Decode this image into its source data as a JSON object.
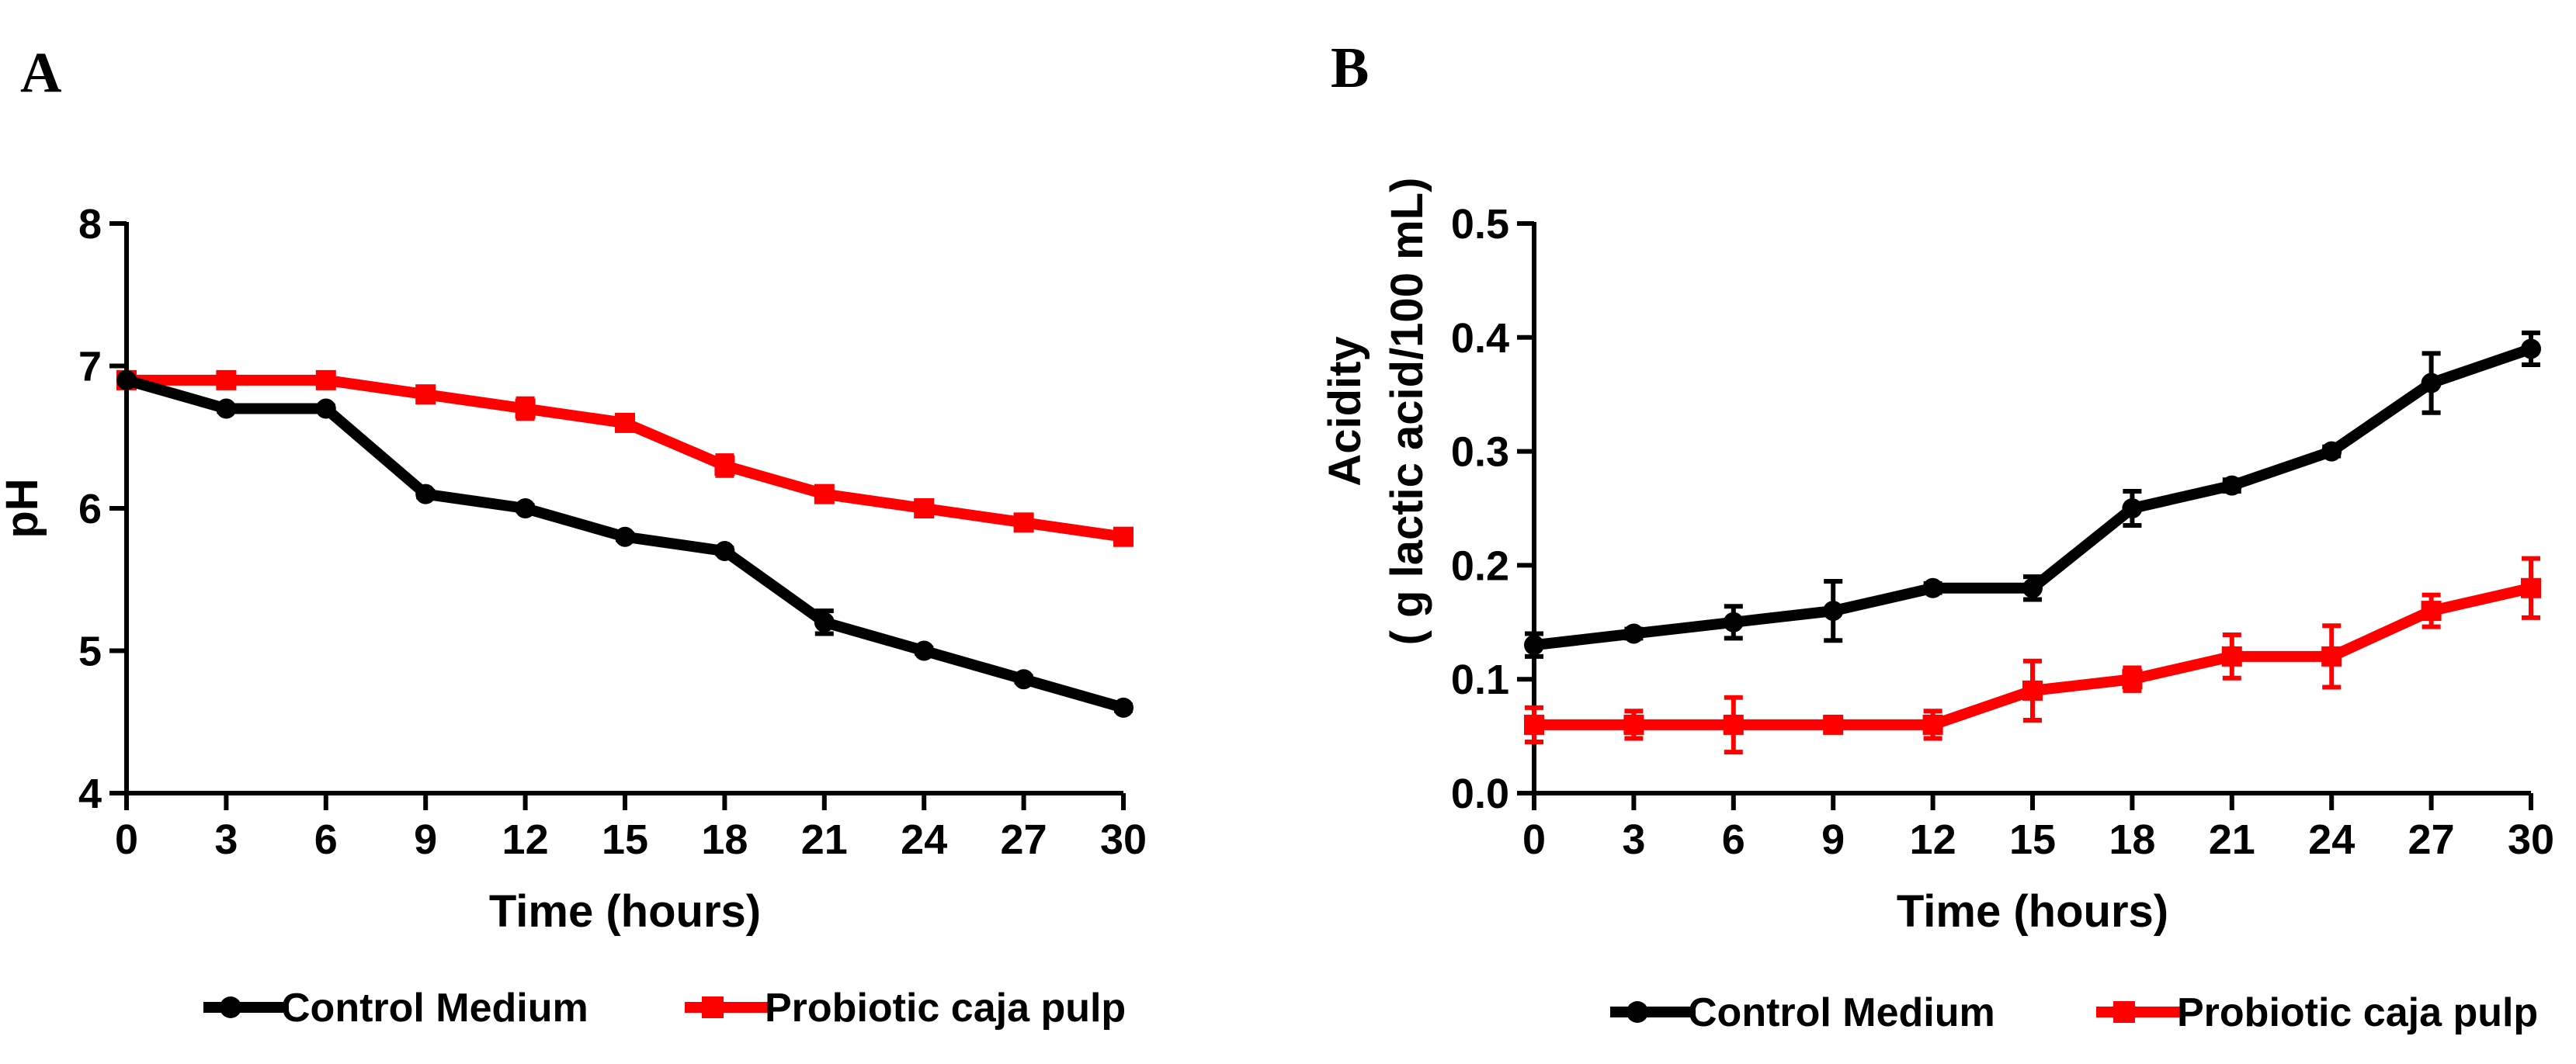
{
  "chart_data": [
    {
      "panel": "A",
      "type": "line",
      "x": [
        0,
        3,
        6,
        9,
        12,
        15,
        18,
        21,
        24,
        27,
        30
      ],
      "x_ticks": [
        "0",
        "3",
        "6",
        "9",
        "12",
        "15",
        "18",
        "21",
        "24",
        "27",
        "30"
      ],
      "y_ticks": [
        "4",
        "5",
        "6",
        "7",
        "8"
      ],
      "xlim": [
        0,
        30
      ],
      "ylim": [
        4,
        8
      ],
      "xlabel": "Time (hours)",
      "ylabel": "pH",
      "series": [
        {
          "name": "Control Medium",
          "color": "#000000",
          "marker": "circle",
          "values": [
            6.9,
            6.7,
            6.7,
            6.1,
            6.0,
            5.8,
            5.7,
            5.2,
            5.0,
            4.8,
            4.6
          ],
          "errors": [
            0.02,
            0.02,
            0.02,
            0.02,
            0.02,
            0.02,
            0.02,
            0.08,
            0.02,
            0.02,
            0.02
          ]
        },
        {
          "name": "Probiotic caja pulp",
          "color": "#ff0000",
          "marker": "square",
          "values": [
            6.9,
            6.9,
            6.9,
            6.8,
            6.7,
            6.6,
            6.3,
            6.1,
            6.0,
            5.9,
            5.8
          ],
          "errors": [
            0.02,
            0.02,
            0.02,
            0.02,
            0.07,
            0.02,
            0.07,
            0.02,
            0.02,
            0.02,
            0.02
          ]
        }
      ],
      "legend": [
        "Control Medium",
        "Probiotic caja pulp"
      ]
    },
    {
      "panel": "B",
      "type": "line",
      "x": [
        0,
        3,
        6,
        9,
        12,
        15,
        18,
        21,
        24,
        27,
        30
      ],
      "x_ticks": [
        "0",
        "3",
        "6",
        "9",
        "12",
        "15",
        "18",
        "21",
        "24",
        "27",
        "30"
      ],
      "y_ticks": [
        "0.0",
        "0.1",
        "0.2",
        "0.3",
        "0.4",
        "0.5"
      ],
      "xlim": [
        0,
        30
      ],
      "ylim": [
        0,
        0.5
      ],
      "xlabel": "Time (hours)",
      "ylabel_lines": [
        "Acidity",
        "( g lactic acid/100 mL)"
      ],
      "series": [
        {
          "name": "Control Medium",
          "color": "#000000",
          "marker": "circle",
          "values": [
            0.13,
            0.14,
            0.15,
            0.16,
            0.18,
            0.18,
            0.25,
            0.27,
            0.3,
            0.36,
            0.39
          ],
          "errors": [
            0.01,
            0.004,
            0.014,
            0.026,
            0.004,
            0.01,
            0.015,
            0.005,
            0.004,
            0.026,
            0.014
          ]
        },
        {
          "name": "Probiotic caja pulp",
          "color": "#ff0000",
          "marker": "square",
          "values": [
            0.06,
            0.06,
            0.06,
            0.06,
            0.06,
            0.09,
            0.1,
            0.12,
            0.12,
            0.16,
            0.18
          ],
          "errors": [
            0.015,
            0.012,
            0.024,
            0.004,
            0.012,
            0.026,
            0.01,
            0.019,
            0.027,
            0.014,
            0.026
          ]
        }
      ],
      "legend": [
        "Control Medium",
        "Probiotic caja pulp"
      ]
    }
  ]
}
